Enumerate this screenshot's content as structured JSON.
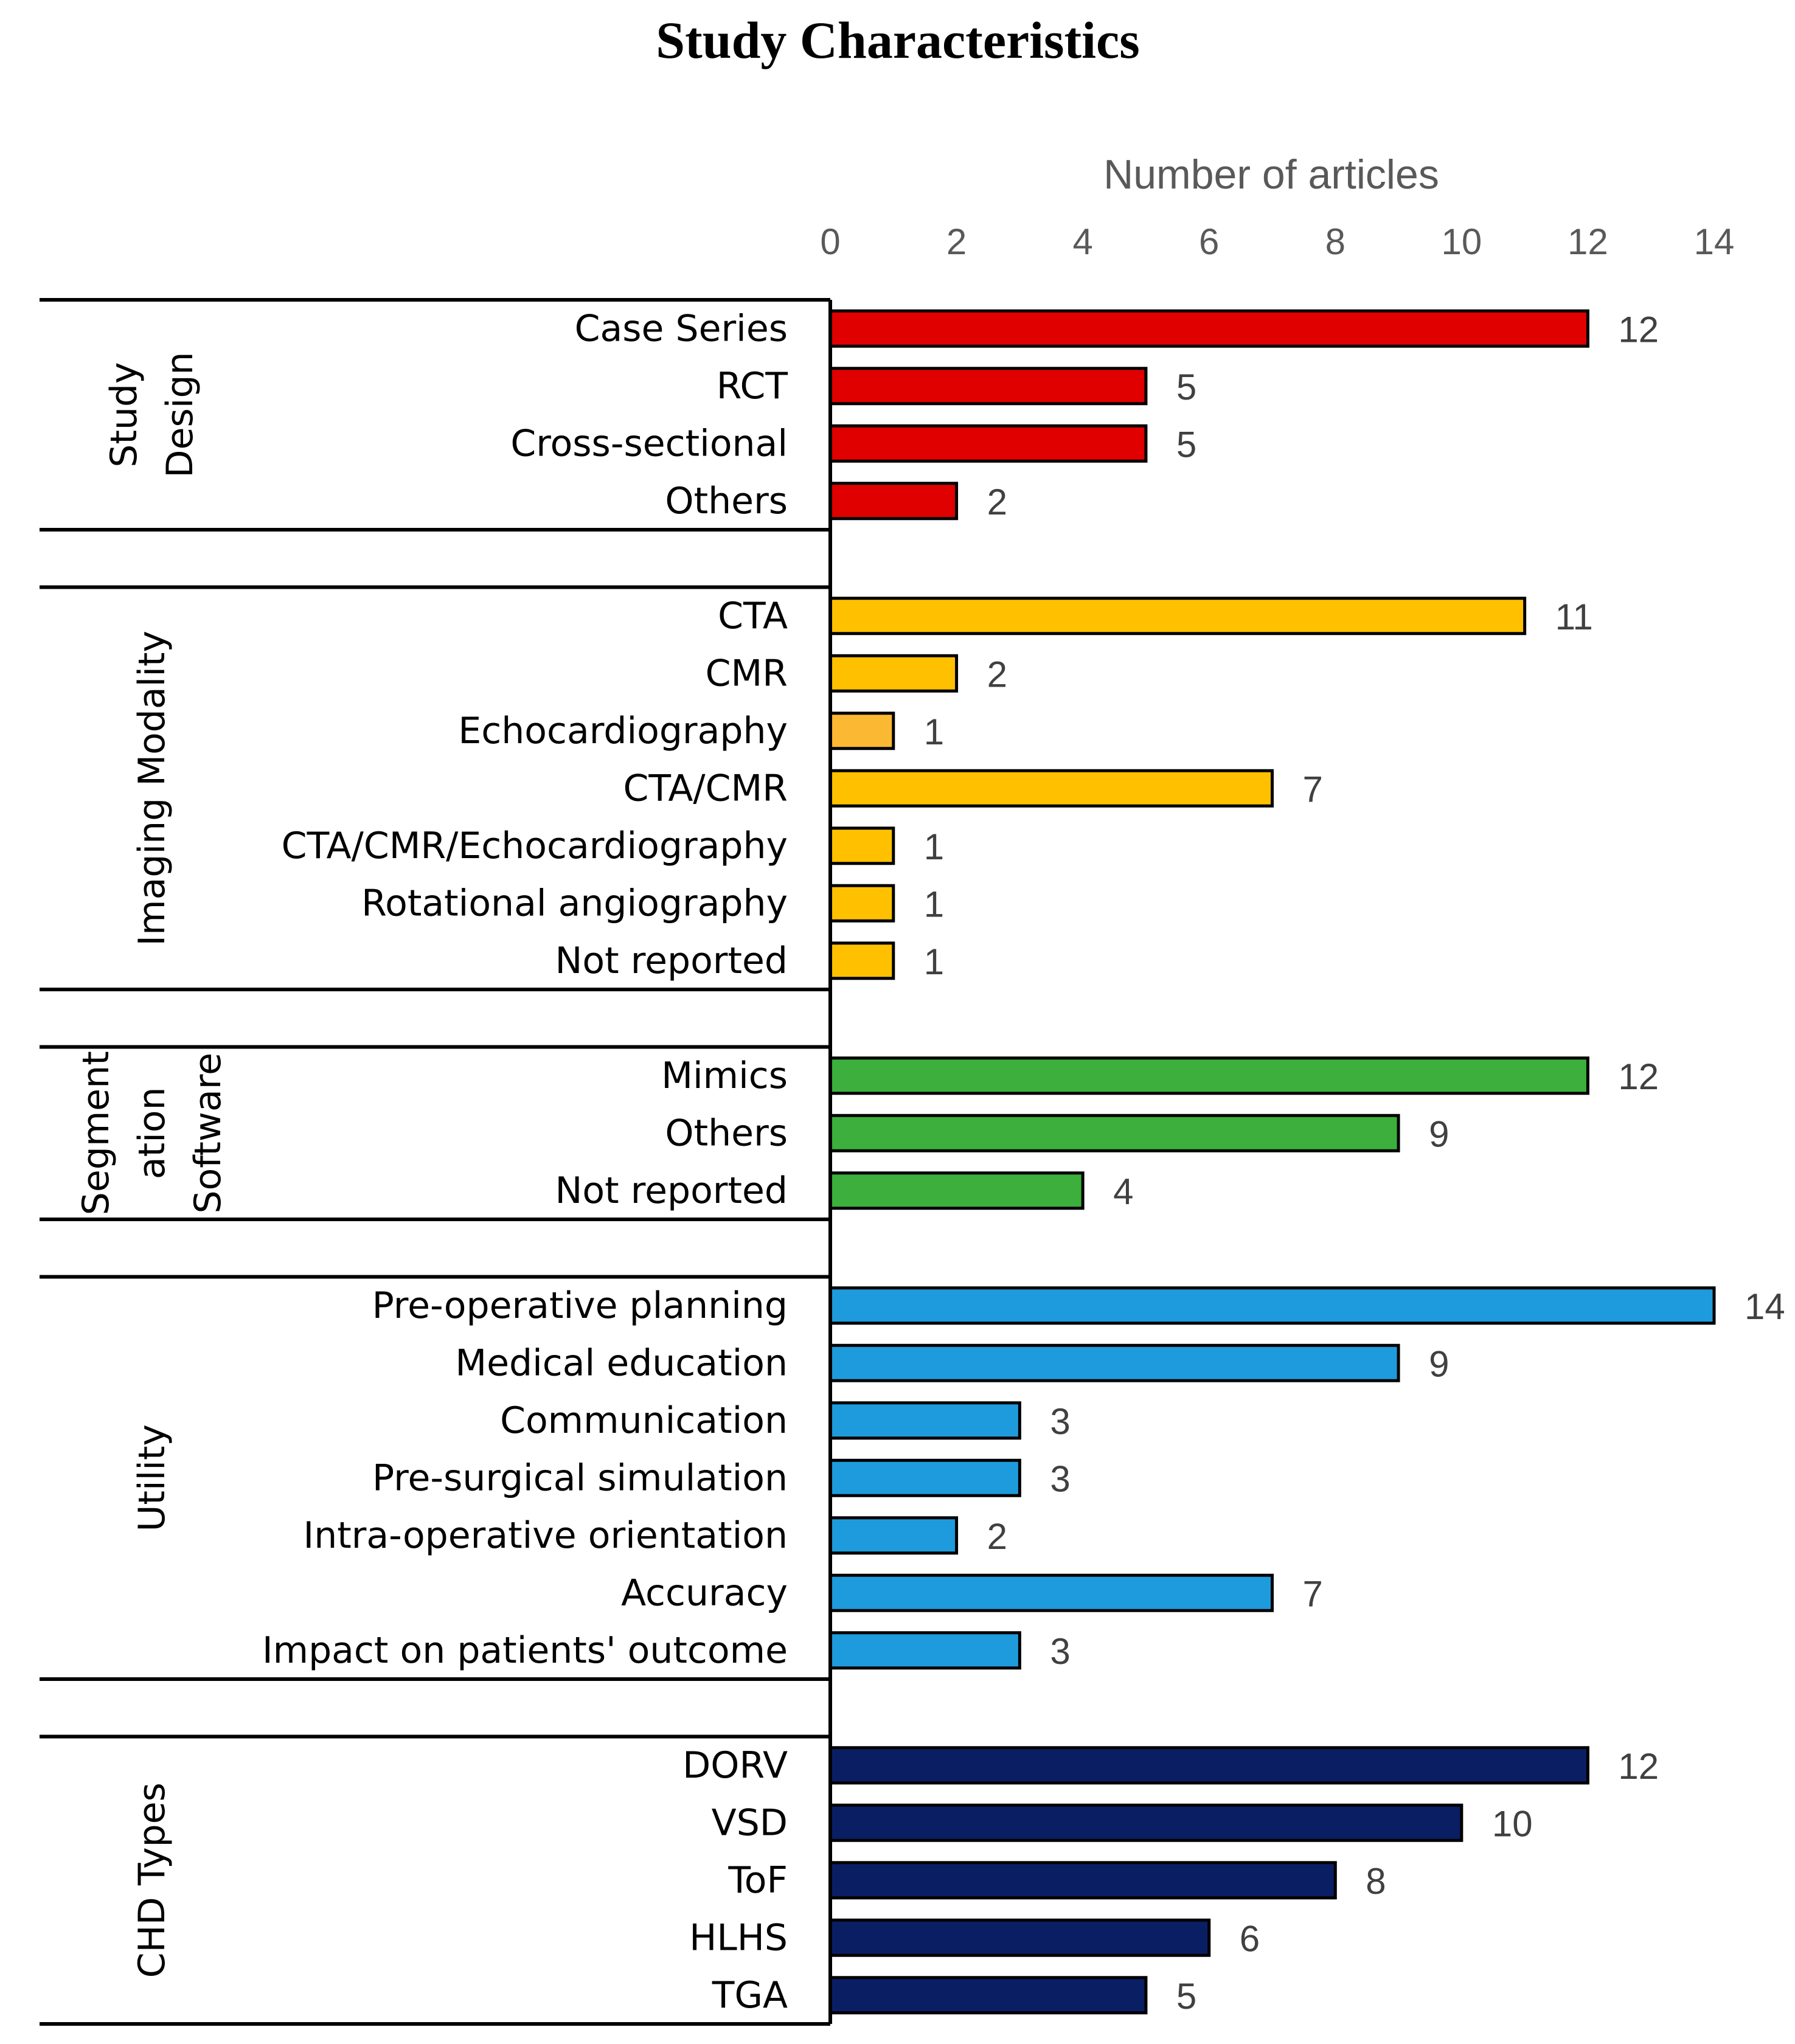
{
  "chart_data": {
    "type": "bar",
    "orientation": "horizontal",
    "title": "Study Characteristics",
    "xlabel": "Number of articles",
    "xlim": [
      0,
      14
    ],
    "xticks": [
      "0",
      "2",
      "4",
      "6",
      "8",
      "10",
      "12",
      "14"
    ],
    "grid": false,
    "groups": [
      {
        "name": "Study Design",
        "label_lines": [
          "Study",
          "Design"
        ],
        "color": "#E00000",
        "items": [
          {
            "label": "Case Series",
            "value": 12
          },
          {
            "label": "RCT",
            "value": 5
          },
          {
            "label": "Cross-sectional",
            "value": 5
          },
          {
            "label": "Others",
            "value": 2
          }
        ]
      },
      {
        "name": "Imaging Modality",
        "label_lines": [
          "Imaging Modality"
        ],
        "color": "#FFC000",
        "items": [
          {
            "label": "CTA",
            "value": 11
          },
          {
            "label": "CMR",
            "value": 2
          },
          {
            "label": "Echocardiography",
            "value": 1,
            "color": "#FBB832"
          },
          {
            "label": "CTA/CMR",
            "value": 7
          },
          {
            "label": "CTA/CMR/Echocardiography",
            "value": 1
          },
          {
            "label": "Rotational angiography",
            "value": 1
          },
          {
            "label": "Not reported",
            "value": 1
          }
        ]
      },
      {
        "name": "Segmentation Software",
        "label_lines": [
          "Segment",
          "ation",
          "Software"
        ],
        "color": "#3CAF3C",
        "items": [
          {
            "label": "Mimics",
            "value": 12
          },
          {
            "label": "Others",
            "value": 9
          },
          {
            "label": "Not reported",
            "value": 4
          }
        ]
      },
      {
        "name": "Utility",
        "label_lines": [
          "Utility"
        ],
        "color": "#1E9BDC",
        "items": [
          {
            "label": "Pre-operative planning",
            "value": 14
          },
          {
            "label": "Medical education",
            "value": 9
          },
          {
            "label": "Communication",
            "value": 3
          },
          {
            "label": "Pre-surgical simulation",
            "value": 3
          },
          {
            "label": "Intra-operative orientation",
            "value": 2
          },
          {
            "label": "Accuracy",
            "value": 7
          },
          {
            "label": "Impact on patients' outcome",
            "value": 3
          }
        ]
      },
      {
        "name": "CHD Types",
        "label_lines": [
          "CHD Types"
        ],
        "color": "#0A1E64",
        "items": [
          {
            "label": "DORV",
            "value": 12
          },
          {
            "label": "VSD",
            "value": 10
          },
          {
            "label": "ToF",
            "value": 8
          },
          {
            "label": "HLHS",
            "value": 6
          },
          {
            "label": "TGA",
            "value": 5
          }
        ]
      }
    ]
  }
}
